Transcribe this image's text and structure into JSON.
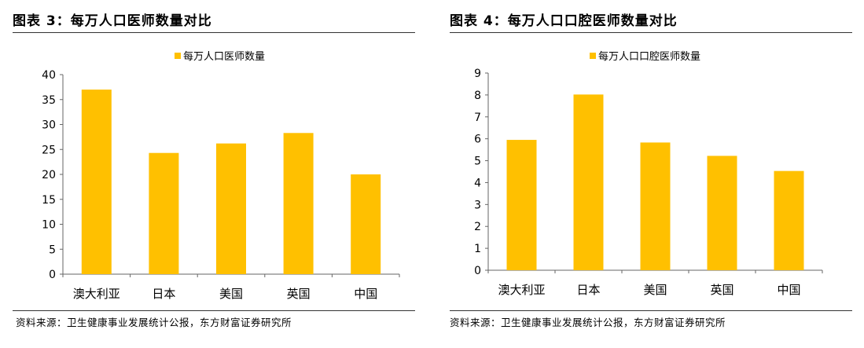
{
  "figures": [
    {
      "title": "图表 3：每万人口医师数量对比",
      "source": "资料来源：卫生健康事业发展统计公报，东方财富证券研究所"
    },
    {
      "title": "图表 4：每万人口口腔医师数量对比",
      "source": "资料来源：卫生健康事业发展统计公报，东方财富证券研究所"
    }
  ],
  "chart_data": [
    {
      "type": "bar",
      "categories": [
        "澳大利亚",
        "日本",
        "美国",
        "英国",
        "中国"
      ],
      "series": [
        {
          "name": "每万人口医师数量",
          "values": [
            37,
            24.3,
            26.2,
            28.3,
            20
          ]
        }
      ],
      "ylim": [
        0,
        40
      ],
      "yticks": [
        "0",
        "5",
        "10",
        "15",
        "20",
        "25",
        "30",
        "35",
        "40"
      ],
      "legend": "top-center",
      "grid": false,
      "color": "#FFC000"
    },
    {
      "type": "bar",
      "categories": [
        "澳大利亚",
        "日本",
        "美国",
        "英国",
        "中国"
      ],
      "series": [
        {
          "name": "每万人口口腔医师数量",
          "values": [
            5.95,
            8.02,
            5.83,
            5.22,
            4.53
          ]
        }
      ],
      "ylim": [
        0,
        9
      ],
      "yticks": [
        "0",
        "1",
        "2",
        "3",
        "4",
        "5",
        "6",
        "7",
        "8",
        "9"
      ],
      "legend": "top-center",
      "grid": false,
      "color": "#FFC000"
    }
  ]
}
